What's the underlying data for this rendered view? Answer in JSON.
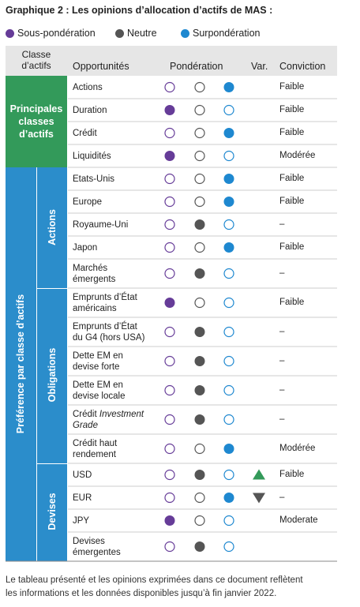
{
  "title": "Graphique 2 : Les opinions d’allocation d’actifs de MAS :",
  "legend": [
    {
      "label": "Sous-pondération",
      "color": "#663c98"
    },
    {
      "label": "Neutre",
      "color": "#555555"
    },
    {
      "label": "Surpondération",
      "color": "#1e88d0"
    }
  ],
  "header": {
    "class": [
      "Classe",
      "d’actifs"
    ],
    "opportunities": "Opportunités",
    "weighting": "Pondération",
    "var": "Var.",
    "conviction": "Conviction"
  },
  "groups": [
    {
      "label": [
        "Principales",
        "classes",
        "d’actifs"
      ],
      "color": "#339a5a",
      "subgroups": [
        {
          "label": null,
          "rows": [
            {
              "label": [
                "Actions"
              ],
              "weight": 2,
              "var": null,
              "conviction": "Faible"
            },
            {
              "label": [
                "Duration"
              ],
              "weight": 0,
              "var": null,
              "conviction": "Faible"
            },
            {
              "label": [
                "Crédit"
              ],
              "weight": 2,
              "var": null,
              "conviction": "Faible"
            },
            {
              "label": [
                "Liquidités"
              ],
              "weight": 0,
              "var": null,
              "conviction": "Modérée"
            }
          ]
        }
      ]
    },
    {
      "label": [
        "Préférence par classe d’actifs"
      ],
      "color": "#2b8dcb",
      "subgroups": [
        {
          "label": "Actions",
          "rows": [
            {
              "label": [
                "Etats-Unis"
              ],
              "weight": 2,
              "var": null,
              "conviction": "Faible"
            },
            {
              "label": [
                "Europe"
              ],
              "weight": 2,
              "var": null,
              "conviction": "Faible"
            },
            {
              "label": [
                "Royaume-Uni"
              ],
              "weight": 1,
              "var": null,
              "conviction": "–"
            },
            {
              "label": [
                "Japon"
              ],
              "weight": 2,
              "var": null,
              "conviction": "Faible"
            },
            {
              "label": [
                "Marchés",
                "émergents"
              ],
              "weight": 1,
              "var": null,
              "conviction": "–"
            }
          ]
        },
        {
          "label": "Obligations",
          "rows": [
            {
              "label": [
                "Emprunts d’État",
                "américains"
              ],
              "weight": 0,
              "var": null,
              "conviction": "Faible"
            },
            {
              "label": [
                "Emprunts d’État",
                "du G4 (hors USA)"
              ],
              "weight": 1,
              "var": null,
              "conviction": "–"
            },
            {
              "label": [
                "Dette EM en",
                "devise forte"
              ],
              "weight": 1,
              "var": null,
              "conviction": "–"
            },
            {
              "label": [
                "Dette EM en",
                "devise locale"
              ],
              "weight": 1,
              "var": null,
              "conviction": "–"
            },
            {
              "label": [
                "Crédit Investment",
                "Grade"
              ],
              "weight": 1,
              "var": null,
              "conviction": "–"
            },
            {
              "label": [
                "Crédit haut",
                "rendement"
              ],
              "weight": 2,
              "var": null,
              "conviction": "Modérée"
            }
          ]
        },
        {
          "label": "Devises",
          "rows": [
            {
              "label": [
                "USD"
              ],
              "weight": 1,
              "var": "up",
              "conviction": "Faible"
            },
            {
              "label": [
                "EUR"
              ],
              "weight": 2,
              "var": "down",
              "conviction": "–"
            },
            {
              "label": [
                "JPY"
              ],
              "weight": 0,
              "var": null,
              "conviction": "Moderate"
            },
            {
              "label": [
                "Devises",
                "émergentes"
              ],
              "weight": 1,
              "var": null,
              "conviction": null
            }
          ]
        }
      ]
    }
  ],
  "footnote": [
    "Le tableau présenté et les opinions exprimées dans ce document reflètent",
    "les informations et les données disponibles jusqu’à fin janvier 2022."
  ]
}
